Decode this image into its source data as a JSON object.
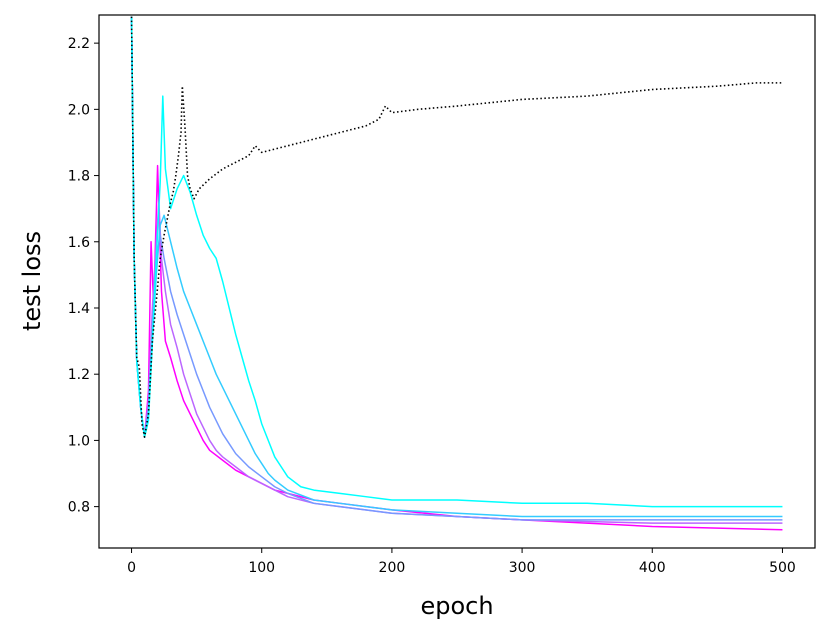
{
  "chart_data": {
    "type": "line",
    "xlabel": "epoch",
    "ylabel": "test loss",
    "xlim": [
      -25,
      525
    ],
    "ylim": [
      0.675,
      2.285
    ],
    "x_ticks": [
      0,
      100,
      200,
      300,
      400,
      500
    ],
    "x_tick_labels": [
      "0",
      "100",
      "200",
      "300",
      "400",
      "500"
    ],
    "y_ticks": [
      0.8,
      1.0,
      1.2,
      1.4,
      1.6,
      1.8,
      2.0,
      2.2
    ],
    "y_tick_labels": [
      "0.8",
      "1.0",
      "1.2",
      "1.4",
      "1.6",
      "1.8",
      "2.0",
      "2.2"
    ],
    "grid": false,
    "legend": "none",
    "series": [
      {
        "color": "#000000",
        "style": "dotted",
        "points": [
          [
            0,
            2.28
          ],
          [
            2,
            1.55
          ],
          [
            4,
            1.25
          ],
          [
            6,
            1.22
          ],
          [
            8,
            1.05
          ],
          [
            10,
            1.01
          ],
          [
            13,
            1.08
          ],
          [
            16,
            1.3
          ],
          [
            19,
            1.42
          ],
          [
            22,
            1.55
          ],
          [
            25,
            1.62
          ],
          [
            28,
            1.68
          ],
          [
            30,
            1.72
          ],
          [
            32,
            1.75
          ],
          [
            34,
            1.8
          ],
          [
            36,
            1.86
          ],
          [
            38,
            1.93
          ],
          [
            39,
            2.07
          ],
          [
            41,
            1.95
          ],
          [
            43,
            1.8
          ],
          [
            45,
            1.76
          ],
          [
            48,
            1.73
          ],
          [
            52,
            1.76
          ],
          [
            60,
            1.79
          ],
          [
            70,
            1.82
          ],
          [
            80,
            1.84
          ],
          [
            90,
            1.86
          ],
          [
            95,
            1.89
          ],
          [
            100,
            1.87
          ],
          [
            120,
            1.89
          ],
          [
            140,
            1.91
          ],
          [
            160,
            1.93
          ],
          [
            180,
            1.95
          ],
          [
            190,
            1.97
          ],
          [
            195,
            2.01
          ],
          [
            200,
            1.99
          ],
          [
            220,
            2.0
          ],
          [
            250,
            2.01
          ],
          [
            300,
            2.03
          ],
          [
            350,
            2.04
          ],
          [
            400,
            2.06
          ],
          [
            450,
            2.07
          ],
          [
            480,
            2.08
          ],
          [
            500,
            2.08
          ]
        ]
      },
      {
        "color": "#00ffff",
        "style": "solid",
        "points": [
          [
            0,
            2.28
          ],
          [
            2,
            1.55
          ],
          [
            4,
            1.24
          ],
          [
            7,
            1.1
          ],
          [
            10,
            1.01
          ],
          [
            13,
            1.06
          ],
          [
            16,
            1.3
          ],
          [
            19,
            1.55
          ],
          [
            22,
            1.78
          ],
          [
            24,
            2.04
          ],
          [
            26,
            1.82
          ],
          [
            30,
            1.7
          ],
          [
            35,
            1.76
          ],
          [
            40,
            1.8
          ],
          [
            45,
            1.75
          ],
          [
            50,
            1.68
          ],
          [
            55,
            1.62
          ],
          [
            60,
            1.58
          ],
          [
            65,
            1.55
          ],
          [
            70,
            1.48
          ],
          [
            75,
            1.4
          ],
          [
            80,
            1.32
          ],
          [
            85,
            1.25
          ],
          [
            90,
            1.18
          ],
          [
            95,
            1.12
          ],
          [
            100,
            1.05
          ],
          [
            105,
            1.0
          ],
          [
            110,
            0.95
          ],
          [
            115,
            0.92
          ],
          [
            120,
            0.89
          ],
          [
            130,
            0.86
          ],
          [
            140,
            0.85
          ],
          [
            160,
            0.84
          ],
          [
            180,
            0.83
          ],
          [
            200,
            0.82
          ],
          [
            250,
            0.82
          ],
          [
            300,
            0.81
          ],
          [
            350,
            0.81
          ],
          [
            400,
            0.8
          ],
          [
            450,
            0.8
          ],
          [
            500,
            0.8
          ]
        ]
      },
      {
        "color": "#33ccff",
        "style": "solid",
        "points": [
          [
            0,
            2.28
          ],
          [
            2,
            1.55
          ],
          [
            4,
            1.24
          ],
          [
            7,
            1.1
          ],
          [
            10,
            1.01
          ],
          [
            13,
            1.08
          ],
          [
            16,
            1.3
          ],
          [
            19,
            1.5
          ],
          [
            22,
            1.65
          ],
          [
            25,
            1.68
          ],
          [
            30,
            1.6
          ],
          [
            35,
            1.52
          ],
          [
            40,
            1.45
          ],
          [
            45,
            1.4
          ],
          [
            50,
            1.35
          ],
          [
            55,
            1.3
          ],
          [
            60,
            1.25
          ],
          [
            65,
            1.2
          ],
          [
            70,
            1.16
          ],
          [
            75,
            1.12
          ],
          [
            80,
            1.08
          ],
          [
            85,
            1.04
          ],
          [
            90,
            1.0
          ],
          [
            95,
            0.96
          ],
          [
            100,
            0.93
          ],
          [
            105,
            0.9
          ],
          [
            110,
            0.88
          ],
          [
            120,
            0.85
          ],
          [
            140,
            0.82
          ],
          [
            160,
            0.81
          ],
          [
            200,
            0.79
          ],
          [
            250,
            0.78
          ],
          [
            300,
            0.77
          ],
          [
            400,
            0.77
          ],
          [
            500,
            0.77
          ]
        ]
      },
      {
        "color": "#7799ff",
        "style": "solid",
        "points": [
          [
            0,
            2.28
          ],
          [
            2,
            1.55
          ],
          [
            4,
            1.24
          ],
          [
            7,
            1.1
          ],
          [
            10,
            1.01
          ],
          [
            13,
            1.1
          ],
          [
            16,
            1.35
          ],
          [
            19,
            1.55
          ],
          [
            22,
            1.62
          ],
          [
            25,
            1.55
          ],
          [
            30,
            1.45
          ],
          [
            35,
            1.38
          ],
          [
            40,
            1.32
          ],
          [
            45,
            1.26
          ],
          [
            50,
            1.2
          ],
          [
            55,
            1.15
          ],
          [
            60,
            1.1
          ],
          [
            65,
            1.06
          ],
          [
            70,
            1.02
          ],
          [
            75,
            0.99
          ],
          [
            80,
            0.96
          ],
          [
            90,
            0.92
          ],
          [
            100,
            0.89
          ],
          [
            110,
            0.86
          ],
          [
            120,
            0.84
          ],
          [
            140,
            0.81
          ],
          [
            160,
            0.8
          ],
          [
            200,
            0.78
          ],
          [
            250,
            0.77
          ],
          [
            300,
            0.76
          ],
          [
            400,
            0.76
          ],
          [
            500,
            0.76
          ]
        ]
      },
      {
        "color": "#bb66ff",
        "style": "solid",
        "points": [
          [
            0,
            2.28
          ],
          [
            2,
            1.55
          ],
          [
            4,
            1.24
          ],
          [
            7,
            1.1
          ],
          [
            10,
            1.01
          ],
          [
            13,
            1.12
          ],
          [
            16,
            1.4
          ],
          [
            19,
            1.6
          ],
          [
            21,
            1.72
          ],
          [
            23,
            1.55
          ],
          [
            26,
            1.45
          ],
          [
            30,
            1.35
          ],
          [
            35,
            1.28
          ],
          [
            40,
            1.2
          ],
          [
            45,
            1.14
          ],
          [
            50,
            1.08
          ],
          [
            55,
            1.04
          ],
          [
            60,
            1.0
          ],
          [
            65,
            0.97
          ],
          [
            70,
            0.95
          ],
          [
            80,
            0.92
          ],
          [
            90,
            0.89
          ],
          [
            100,
            0.87
          ],
          [
            110,
            0.85
          ],
          [
            120,
            0.83
          ],
          [
            140,
            0.81
          ],
          [
            160,
            0.8
          ],
          [
            200,
            0.78
          ],
          [
            250,
            0.77
          ],
          [
            300,
            0.76
          ],
          [
            400,
            0.75
          ],
          [
            500,
            0.75
          ]
        ]
      },
      {
        "color": "#ff00ff",
        "style": "solid",
        "points": [
          [
            0,
            2.28
          ],
          [
            2,
            1.55
          ],
          [
            4,
            1.24
          ],
          [
            7,
            1.1
          ],
          [
            10,
            1.01
          ],
          [
            13,
            1.15
          ],
          [
            15,
            1.6
          ],
          [
            17,
            1.4
          ],
          [
            20,
            1.83
          ],
          [
            23,
            1.45
          ],
          [
            26,
            1.3
          ],
          [
            30,
            1.25
          ],
          [
            35,
            1.18
          ],
          [
            40,
            1.12
          ],
          [
            45,
            1.08
          ],
          [
            50,
            1.04
          ],
          [
            55,
            1.0
          ],
          [
            60,
            0.97
          ],
          [
            70,
            0.94
          ],
          [
            80,
            0.91
          ],
          [
            90,
            0.89
          ],
          [
            100,
            0.87
          ],
          [
            110,
            0.85
          ],
          [
            120,
            0.84
          ],
          [
            140,
            0.82
          ],
          [
            160,
            0.81
          ],
          [
            200,
            0.79
          ],
          [
            250,
            0.77
          ],
          [
            300,
            0.76
          ],
          [
            400,
            0.74
          ],
          [
            500,
            0.73
          ]
        ]
      }
    ]
  }
}
